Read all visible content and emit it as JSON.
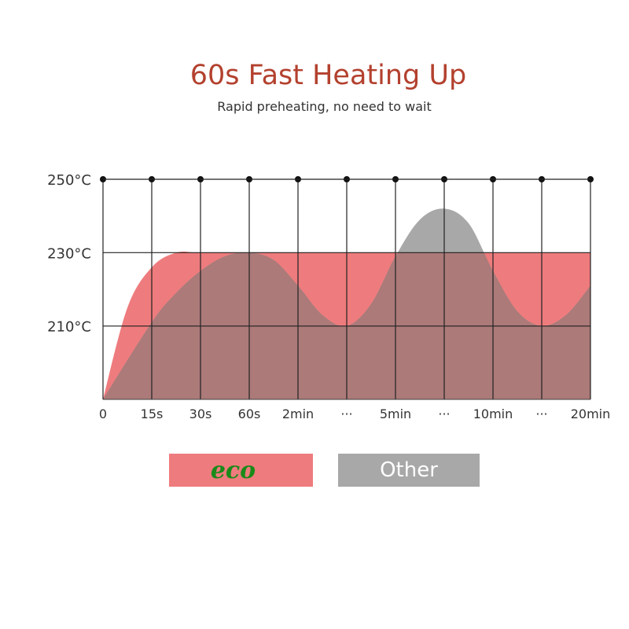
{
  "title": "60s Fast Heating Up",
  "subtitle": "Rapid preheating, no need to wait",
  "colors": {
    "eco": "#ee7b7d",
    "other": "#a8a8a8",
    "overlap": "#ab7a79",
    "title": "#b3412e",
    "eco_label_text": "#1a8a1a"
  },
  "chart_data": {
    "type": "area",
    "categories": [
      "0",
      "15s",
      "30s",
      "60s",
      "2min",
      "···",
      "5min",
      "···",
      "10min",
      "···",
      "20min"
    ],
    "y_ticks": [
      "250°C",
      "230°C",
      "210°C"
    ],
    "ylim": [
      190,
      250
    ],
    "grid": true,
    "legend_placement": "bottom",
    "series": [
      {
        "name": "eco",
        "x": [
          0,
          0.5,
          1,
          1.5,
          2,
          3,
          4,
          5,
          6,
          7,
          8,
          9,
          10
        ],
        "values": [
          190,
          215,
          226,
          230,
          230,
          230,
          230,
          230,
          230,
          230,
          230,
          230,
          230
        ]
      },
      {
        "name": "Other",
        "x": [
          0,
          1,
          1.5,
          2,
          2.5,
          3,
          3.5,
          4,
          4.5,
          5,
          5.5,
          6,
          6.5,
          7,
          7.5,
          8,
          8.5,
          9,
          9.5,
          10
        ],
        "values": [
          190,
          211,
          219,
          225,
          229,
          230,
          228,
          221,
          213,
          210,
          216,
          229,
          239,
          242,
          238,
          225,
          214,
          210,
          213,
          221
        ]
      }
    ]
  }
}
